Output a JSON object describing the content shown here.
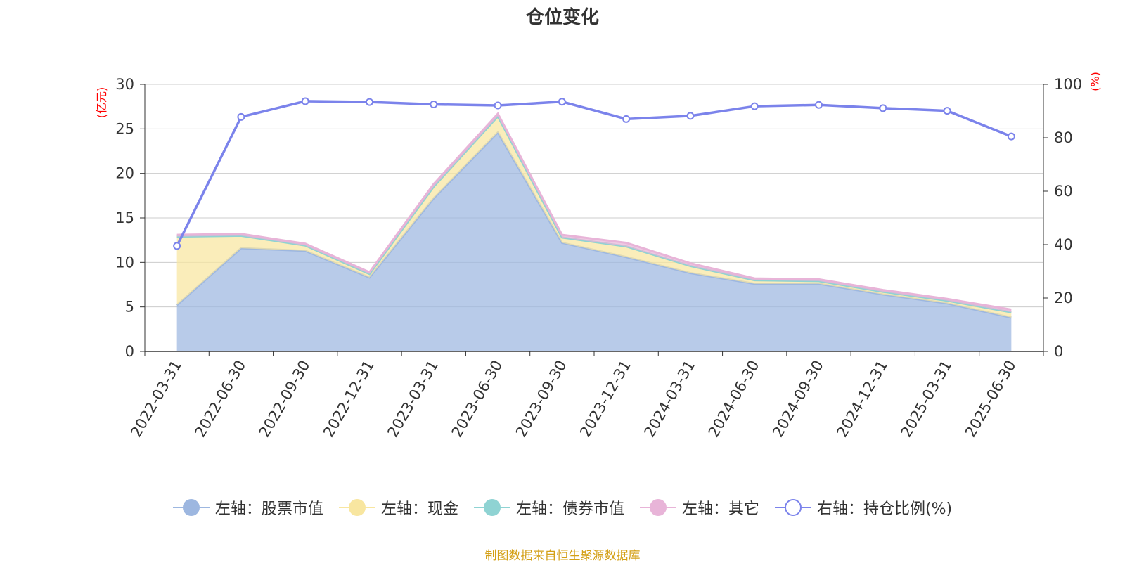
{
  "chart_data": {
    "type": "area",
    "title": "仓位变化",
    "left_axis_unit": "(亿元)",
    "right_axis_unit": "(%)",
    "categories": [
      "2022-03-31",
      "2022-06-30",
      "2022-09-30",
      "2022-12-31",
      "2023-03-31",
      "2023-06-30",
      "2023-09-30",
      "2023-12-31",
      "2024-03-31",
      "2024-06-30",
      "2024-09-30",
      "2024-12-31",
      "2025-03-31",
      "2025-06-30"
    ],
    "left_ylim": [
      0,
      30
    ],
    "left_yticks": [
      0,
      5,
      10,
      15,
      20,
      25,
      30
    ],
    "right_ylim": [
      0,
      100
    ],
    "right_yticks": [
      0,
      20,
      40,
      60,
      80,
      100
    ],
    "grid": true,
    "legend_position": "bottom",
    "series": [
      {
        "name": "左轴：股票市值",
        "axis": "left",
        "stacked": true,
        "color": "#9db7e0",
        "values": [
          5.2,
          11.6,
          11.3,
          8.3,
          17.2,
          24.6,
          12.2,
          10.6,
          8.8,
          7.6,
          7.6,
          6.4,
          5.4,
          3.8
        ]
      },
      {
        "name": "左轴：现金",
        "axis": "left",
        "stacked": true,
        "color": "#f8e6a0",
        "values": [
          7.7,
          1.4,
          0.6,
          0.4,
          1.3,
          1.8,
          0.6,
          1.2,
          0.8,
          0.4,
          0.3,
          0.3,
          0.3,
          0.6
        ]
      },
      {
        "name": "左轴：债券市值",
        "axis": "left",
        "stacked": true,
        "color": "#8fd3d3",
        "values": [
          0,
          0,
          0,
          0,
          0,
          0,
          0,
          0,
          0,
          0,
          0,
          0,
          0,
          0
        ]
      },
      {
        "name": "左轴：其它",
        "axis": "left",
        "stacked": true,
        "color": "#e8b4d8",
        "values": [
          0.2,
          0.2,
          0.2,
          0.2,
          0.3,
          0.3,
          0.3,
          0.4,
          0.3,
          0.2,
          0.2,
          0.2,
          0.2,
          0.3
        ]
      },
      {
        "name": "右轴：持仓比例(%)",
        "axis": "right",
        "type": "line",
        "color": "#7b83eb",
        "values": [
          39.5,
          87.8,
          93.7,
          93.4,
          92.5,
          92.1,
          93.5,
          87.0,
          88.2,
          91.8,
          92.3,
          91.1,
          90.1,
          80.5
        ]
      }
    ]
  },
  "footer": {
    "source": "制图数据来自恒生聚源数据库"
  }
}
